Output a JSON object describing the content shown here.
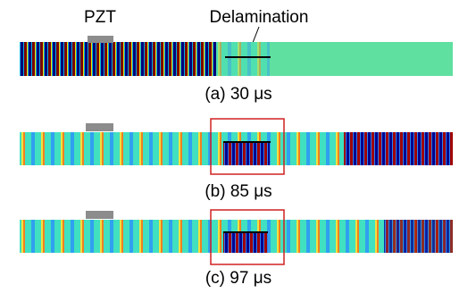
{
  "labels": {
    "pzt": "PZT",
    "delamination": "Delamination"
  },
  "panels": [
    {
      "caption": "(a) 30 μs"
    },
    {
      "caption": "(b) 85 μs"
    },
    {
      "caption": "(c) 97 μs"
    }
  ]
}
